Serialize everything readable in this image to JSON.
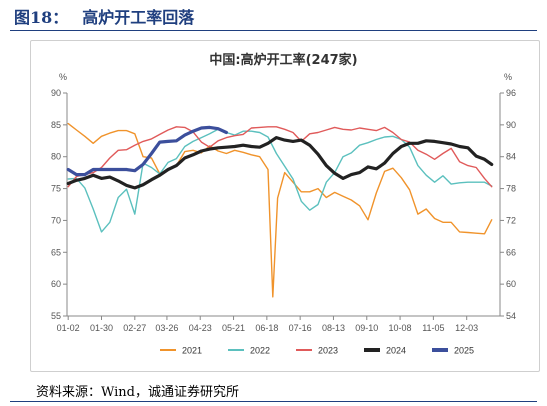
{
  "figure": {
    "number": "图18：",
    "title": "高炉开工率回落",
    "source": "资料来源：Wind，诚通证券研究所"
  },
  "chart_data": {
    "type": "line",
    "title": "中国:高炉开工率(247家)",
    "left_unit": "%",
    "right_unit": "%",
    "ylim_left": [
      55,
      90
    ],
    "yticks_left": [
      "55",
      "60",
      "65",
      "70",
      "75",
      "80",
      "85",
      "90"
    ],
    "ylim_right": [
      54,
      96
    ],
    "yticks_right": [
      "54",
      "60",
      "66",
      "72",
      "78",
      "84",
      "90",
      "96"
    ],
    "xlim_day": [
      1,
      365
    ],
    "xticks": [
      {
        "label": "01-02",
        "day": 2
      },
      {
        "label": "01-30",
        "day": 30
      },
      {
        "label": "02-27",
        "day": 58
      },
      {
        "label": "03-26",
        "day": 85
      },
      {
        "label": "04-23",
        "day": 113
      },
      {
        "label": "05-21",
        "day": 141
      },
      {
        "label": "06-18",
        "day": 169
      },
      {
        "label": "07-16",
        "day": 197
      },
      {
        "label": "08-13",
        "day": 225
      },
      {
        "label": "09-10",
        "day": 253
      },
      {
        "label": "10-08",
        "day": 281
      },
      {
        "label": "11-05",
        "day": 309
      },
      {
        "label": "12-03",
        "day": 337
      }
    ],
    "grid": false,
    "legend_position": "bottom",
    "series": [
      {
        "name": "2021",
        "color": "#f0932b",
        "width": 1.4,
        "points": [
          [
            2,
            85.2
          ],
          [
            9,
            84.2
          ],
          [
            16,
            83.2
          ],
          [
            23,
            82.1
          ],
          [
            30,
            83.2
          ],
          [
            37,
            83.7
          ],
          [
            44,
            84.1
          ],
          [
            51,
            84.1
          ],
          [
            58,
            83.6
          ],
          [
            65,
            80.0
          ],
          [
            72,
            79.8
          ],
          [
            79,
            77.3
          ],
          [
            86,
            78.0
          ],
          [
            93,
            78.6
          ],
          [
            100,
            80.8
          ],
          [
            107,
            81.0
          ],
          [
            114,
            80.6
          ],
          [
            121,
            81.7
          ],
          [
            128,
            80.9
          ],
          [
            135,
            80.5
          ],
          [
            142,
            81.0
          ],
          [
            149,
            80.7
          ],
          [
            156,
            80.3
          ],
          [
            163,
            80.0
          ],
          [
            170,
            78.0
          ],
          [
            174,
            58.0
          ],
          [
            178,
            73.5
          ],
          [
            184,
            77.5
          ],
          [
            191,
            76.0
          ],
          [
            198,
            74.5
          ],
          [
            205,
            74.5
          ],
          [
            212,
            75.0
          ],
          [
            219,
            73.6
          ],
          [
            226,
            74.4
          ],
          [
            233,
            73.8
          ],
          [
            240,
            73.2
          ],
          [
            247,
            72.3
          ],
          [
            254,
            70.1
          ],
          [
            261,
            74.3
          ],
          [
            268,
            77.7
          ],
          [
            275,
            78.2
          ],
          [
            282,
            76.7
          ],
          [
            289,
            74.8
          ],
          [
            296,
            71.0
          ],
          [
            303,
            71.8
          ],
          [
            310,
            70.3
          ],
          [
            317,
            69.7
          ],
          [
            324,
            69.7
          ],
          [
            331,
            68.2
          ],
          [
            338,
            68.1
          ],
          [
            345,
            68.0
          ],
          [
            352,
            67.9
          ],
          [
            358,
            70.1
          ]
        ]
      },
      {
        "name": "2022",
        "color": "#5bc0be",
        "width": 1.4,
        "points": [
          [
            2,
            76.5
          ],
          [
            9,
            76.6
          ],
          [
            16,
            75.1
          ],
          [
            23,
            71.8
          ],
          [
            30,
            68.2
          ],
          [
            37,
            69.7
          ],
          [
            44,
            73.6
          ],
          [
            51,
            74.9
          ],
          [
            58,
            71.0
          ],
          [
            65,
            79.0
          ],
          [
            72,
            78.3
          ],
          [
            79,
            77.3
          ],
          [
            86,
            79.1
          ],
          [
            93,
            79.7
          ],
          [
            100,
            81.6
          ],
          [
            107,
            82.4
          ],
          [
            114,
            83.0
          ],
          [
            121,
            83.6
          ],
          [
            128,
            84.3
          ],
          [
            135,
            83.8
          ],
          [
            142,
            83.4
          ],
          [
            149,
            84.0
          ],
          [
            156,
            84.0
          ],
          [
            163,
            83.8
          ],
          [
            170,
            83.1
          ],
          [
            177,
            80.5
          ],
          [
            184,
            78.5
          ],
          [
            191,
            76.5
          ],
          [
            198,
            73.0
          ],
          [
            205,
            71.6
          ],
          [
            212,
            72.5
          ],
          [
            219,
            76.0
          ],
          [
            226,
            77.5
          ],
          [
            233,
            80.0
          ],
          [
            240,
            80.6
          ],
          [
            247,
            81.8
          ],
          [
            254,
            82.2
          ],
          [
            261,
            82.7
          ],
          [
            268,
            83.1
          ],
          [
            275,
            83.2
          ],
          [
            282,
            82.7
          ],
          [
            289,
            81.5
          ],
          [
            296,
            78.6
          ],
          [
            303,
            77.1
          ],
          [
            310,
            76.0
          ],
          [
            317,
            77.0
          ],
          [
            324,
            75.7
          ],
          [
            331,
            75.9
          ],
          [
            338,
            76.0
          ],
          [
            345,
            76.0
          ],
          [
            352,
            76.0
          ],
          [
            358,
            75.4
          ]
        ]
      },
      {
        "name": "2023",
        "color": "#e05a5a",
        "width": 1.4,
        "points": [
          [
            2,
            75.3
          ],
          [
            9,
            76.9
          ],
          [
            16,
            77.2
          ],
          [
            23,
            77.5
          ],
          [
            30,
            78.3
          ],
          [
            37,
            79.8
          ],
          [
            44,
            81.0
          ],
          [
            51,
            81.1
          ],
          [
            58,
            81.8
          ],
          [
            65,
            82.4
          ],
          [
            72,
            82.8
          ],
          [
            79,
            83.5
          ],
          [
            86,
            84.2
          ],
          [
            93,
            84.7
          ],
          [
            100,
            84.6
          ],
          [
            107,
            83.9
          ],
          [
            114,
            82.3
          ],
          [
            121,
            81.5
          ],
          [
            128,
            82.5
          ],
          [
            135,
            83.0
          ],
          [
            142,
            83.3
          ],
          [
            149,
            83.5
          ],
          [
            156,
            84.5
          ],
          [
            163,
            84.6
          ],
          [
            170,
            84.7
          ],
          [
            177,
            84.7
          ],
          [
            184,
            84.3
          ],
          [
            191,
            83.8
          ],
          [
            198,
            82.4
          ],
          [
            205,
            83.6
          ],
          [
            212,
            83.8
          ],
          [
            219,
            84.2
          ],
          [
            226,
            84.6
          ],
          [
            233,
            84.3
          ],
          [
            240,
            84.2
          ],
          [
            247,
            84.5
          ],
          [
            254,
            84.3
          ],
          [
            261,
            84.1
          ],
          [
            268,
            84.6
          ],
          [
            275,
            83.8
          ],
          [
            282,
            82.7
          ],
          [
            289,
            82.3
          ],
          [
            296,
            81.0
          ],
          [
            303,
            80.4
          ],
          [
            310,
            79.6
          ],
          [
            317,
            80.5
          ],
          [
            324,
            81.3
          ],
          [
            331,
            79.2
          ],
          [
            338,
            78.6
          ],
          [
            345,
            78.3
          ],
          [
            352,
            76.6
          ],
          [
            358,
            75.3
          ]
        ]
      },
      {
        "name": "2024",
        "color": "#222222",
        "width": 3.2,
        "points": [
          [
            2,
            75.8
          ],
          [
            9,
            76.3
          ],
          [
            16,
            76.6
          ],
          [
            23,
            77.1
          ],
          [
            30,
            76.6
          ],
          [
            37,
            76.8
          ],
          [
            44,
            76.2
          ],
          [
            51,
            75.5
          ],
          [
            58,
            75.1
          ],
          [
            65,
            75.6
          ],
          [
            72,
            76.4
          ],
          [
            79,
            77.1
          ],
          [
            86,
            78.0
          ],
          [
            93,
            78.6
          ],
          [
            100,
            79.8
          ],
          [
            107,
            80.3
          ],
          [
            114,
            80.9
          ],
          [
            121,
            81.2
          ],
          [
            128,
            81.4
          ],
          [
            135,
            81.5
          ],
          [
            142,
            81.6
          ],
          [
            149,
            81.8
          ],
          [
            156,
            81.6
          ],
          [
            163,
            81.5
          ],
          [
            170,
            82.1
          ],
          [
            177,
            83.0
          ],
          [
            184,
            82.6
          ],
          [
            191,
            82.4
          ],
          [
            198,
            82.6
          ],
          [
            205,
            81.8
          ],
          [
            212,
            80.4
          ],
          [
            219,
            78.6
          ],
          [
            226,
            77.4
          ],
          [
            233,
            76.6
          ],
          [
            240,
            77.2
          ],
          [
            247,
            77.5
          ],
          [
            254,
            78.4
          ],
          [
            261,
            78.1
          ],
          [
            268,
            79.0
          ],
          [
            275,
            80.5
          ],
          [
            282,
            81.6
          ],
          [
            289,
            82.1
          ],
          [
            296,
            82.1
          ],
          [
            303,
            82.5
          ],
          [
            310,
            82.4
          ],
          [
            317,
            82.2
          ],
          [
            324,
            82.0
          ],
          [
            331,
            81.6
          ],
          [
            338,
            81.4
          ],
          [
            345,
            80.1
          ],
          [
            352,
            79.6
          ],
          [
            358,
            78.8
          ]
        ]
      },
      {
        "name": "2025",
        "color": "#3c4f9c",
        "width": 3.2,
        "points": [
          [
            2,
            78.0
          ],
          [
            9,
            77.2
          ],
          [
            16,
            77.2
          ],
          [
            23,
            78.0
          ],
          [
            30,
            78.0
          ],
          [
            37,
            78.0
          ],
          [
            44,
            78.0
          ],
          [
            51,
            78.0
          ],
          [
            58,
            77.8
          ],
          [
            65,
            78.8
          ],
          [
            72,
            80.5
          ],
          [
            79,
            82.3
          ],
          [
            86,
            82.4
          ],
          [
            93,
            82.5
          ],
          [
            100,
            83.4
          ],
          [
            107,
            84.0
          ],
          [
            114,
            84.5
          ],
          [
            121,
            84.6
          ],
          [
            128,
            84.4
          ],
          [
            135,
            83.8
          ]
        ]
      }
    ]
  }
}
